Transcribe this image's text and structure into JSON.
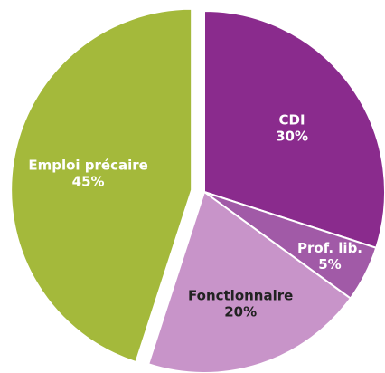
{
  "chart_data": {
    "type": "pie",
    "categories": [
      "CDI",
      "Prof. lib.",
      "Fonctionnaire",
      "Emploi précaire"
    ],
    "values": [
      30,
      5,
      20,
      45
    ],
    "value_labels": [
      "30%",
      "5%",
      "20%",
      "45%"
    ],
    "colors": [
      "#8a2b8d",
      "#a15aa7",
      "#c894c9",
      "#a4b93b"
    ],
    "label_colors": [
      "#ffffff",
      "#ffffff",
      "#222222",
      "#ffffff"
    ]
  }
}
